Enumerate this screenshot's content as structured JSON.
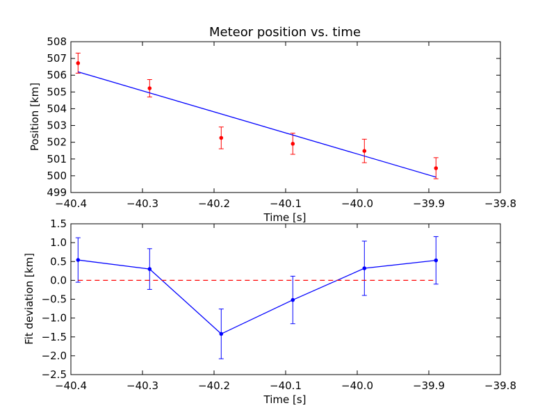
{
  "chart_data": [
    {
      "type": "scatter",
      "title": "Meteor position vs. time",
      "xlabel": "Time [s]",
      "ylabel": "Position [km]",
      "xlim": [
        -40.4,
        -39.8
      ],
      "ylim": [
        499,
        508
      ],
      "xticks": [
        "−40.4",
        "−40.3",
        "−40.2",
        "−40.1",
        "−40.0",
        "−39.9",
        "−39.8"
      ],
      "yticks": [
        "499",
        "500",
        "501",
        "502",
        "503",
        "504",
        "505",
        "506",
        "507",
        "508"
      ],
      "series": [
        {
          "kind": "errorbar-points",
          "color": "#ff0000",
          "x": [
            -40.39,
            -40.29,
            -40.19,
            -40.09,
            -39.99,
            -39.89
          ],
          "y": [
            506.72,
            505.22,
            502.26,
            501.91,
            501.48,
            500.45
          ],
          "yerr": [
            0.6,
            0.52,
            0.65,
            0.63,
            0.7,
            0.63
          ]
        },
        {
          "kind": "fit-line",
          "color": "#0000ff",
          "x": [
            -40.39,
            -39.89
          ],
          "y": [
            506.2,
            499.92
          ]
        }
      ]
    },
    {
      "type": "line",
      "title": "",
      "xlabel": "Time [s]",
      "ylabel": "Fit deviation [km]",
      "xlim": [
        -40.4,
        -39.8
      ],
      "ylim": [
        -2.5,
        1.5
      ],
      "xticks": [
        "−40.4",
        "−40.3",
        "−40.2",
        "−40.1",
        "−40.0",
        "−39.9",
        "−39.8"
      ],
      "yticks": [
        "−2.5",
        "−2.0",
        "−1.5",
        "−1.0",
        "−0.5",
        "0.0",
        "0.5",
        "1.0",
        "1.5"
      ],
      "series": [
        {
          "kind": "errorbar-line",
          "color": "#0000ff",
          "x": [
            -40.39,
            -40.29,
            -40.19,
            -40.09,
            -39.99,
            -39.89
          ],
          "y": [
            0.54,
            0.3,
            -1.42,
            -0.52,
            0.32,
            0.53
          ],
          "yerr": [
            0.59,
            0.54,
            0.66,
            0.63,
            0.72,
            0.63
          ]
        },
        {
          "kind": "zero-line",
          "color": "#ff0000",
          "x": [
            -40.39,
            -39.89
          ],
          "y": [
            0,
            0
          ]
        }
      ]
    }
  ]
}
